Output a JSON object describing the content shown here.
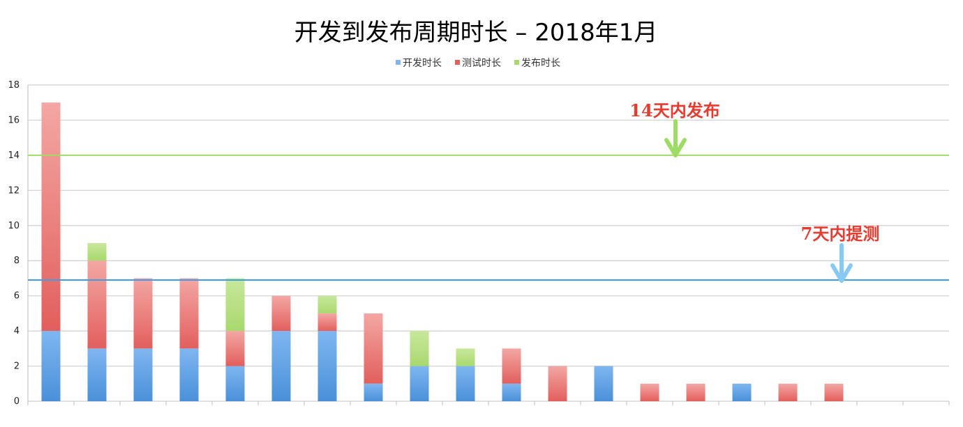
{
  "colors": {
    "dev": "#7fb6f0",
    "dev_dark": "#4a90d9",
    "test": "#e25f5c",
    "test_light": "#f3a7a4",
    "release": "#a9d86e",
    "release_light": "#c8e89c",
    "ref_line_14": "#9fdc65",
    "ref_line_7": "#3d9ee3",
    "arrow_green": "#9fdc65",
    "arrow_blue": "#86c9f4",
    "annot_text": "#e83a2f",
    "grid": "#cfcfcf"
  },
  "chart_data": {
    "type": "bar",
    "stacked": true,
    "title": "开发到发布周期时长 – 2018年1月",
    "xlabel": "",
    "ylabel": "",
    "ylim": [
      0,
      18
    ],
    "yticks": [
      0,
      2,
      4,
      6,
      8,
      10,
      12,
      14,
      16,
      18
    ],
    "grid": true,
    "legend_position": "top-center",
    "categories": [
      "",
      "",
      "",
      "",
      "",
      "",
      "",
      "",
      "",
      "",
      "",
      "",
      "",
      "",
      "",
      "",
      "",
      "",
      "",
      ""
    ],
    "series": [
      {
        "name": "开发时长",
        "color_key": "dev",
        "values": [
          4,
          3,
          3,
          3,
          2,
          4,
          4,
          1,
          2,
          2,
          1,
          0,
          2,
          0,
          0,
          1,
          0,
          0,
          0,
          0
        ]
      },
      {
        "name": "测试时长",
        "color_key": "test",
        "values": [
          13,
          5,
          4,
          4,
          2,
          2,
          1,
          4,
          0,
          0,
          2,
          2,
          0,
          1,
          1,
          0,
          1,
          1,
          0,
          0
        ]
      },
      {
        "name": "发布时长",
        "color_key": "release",
        "values": [
          0,
          1,
          0,
          0,
          3,
          0,
          1,
          0,
          2,
          1,
          0,
          0,
          0,
          0,
          0,
          0,
          0,
          0,
          0,
          0
        ]
      }
    ],
    "reference_lines": [
      {
        "value": 14,
        "label": "14天内发布",
        "color_key": "ref_line_14",
        "arrow_color_key": "arrow_green"
      },
      {
        "value": 6.9,
        "label": "7天内提测",
        "color_key": "ref_line_7",
        "arrow_color_key": "arrow_blue"
      }
    ]
  }
}
